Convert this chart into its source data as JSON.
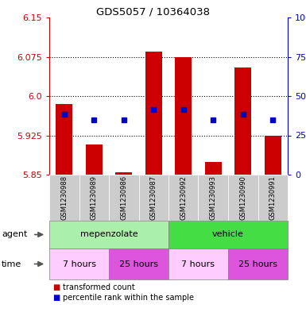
{
  "title": "GDS5057 / 10364038",
  "samples": [
    "GSM1230988",
    "GSM1230989",
    "GSM1230986",
    "GSM1230987",
    "GSM1230992",
    "GSM1230993",
    "GSM1230990",
    "GSM1230991"
  ],
  "bar_tops": [
    5.985,
    5.908,
    5.855,
    6.085,
    6.075,
    5.875,
    6.055,
    5.925
  ],
  "bar_bottoms": [
    5.85,
    5.85,
    5.85,
    5.85,
    5.85,
    5.85,
    5.85,
    5.85
  ],
  "percentile_values": [
    5.965,
    5.955,
    5.955,
    5.975,
    5.975,
    5.955,
    5.965,
    5.955
  ],
  "ylim": [
    5.85,
    6.15
  ],
  "yticks_left": [
    5.85,
    5.925,
    6.0,
    6.075,
    6.15
  ],
  "yticks_right_vals": [
    0,
    25,
    50,
    75,
    100
  ],
  "bar_color": "#cc0000",
  "percentile_color": "#0000cc",
  "agent_groups": [
    {
      "label": "mepenzolate",
      "start": 0,
      "end": 4,
      "color": "#aaf0aa"
    },
    {
      "label": "vehicle",
      "start": 4,
      "end": 8,
      "color": "#44dd44"
    }
  ],
  "time_groups": [
    {
      "label": "7 hours",
      "start": 0,
      "end": 2,
      "color": "#ffccff"
    },
    {
      "label": "25 hours",
      "start": 2,
      "end": 4,
      "color": "#dd55dd"
    },
    {
      "label": "7 hours",
      "start": 4,
      "end": 6,
      "color": "#ffccff"
    },
    {
      "label": "25 hours",
      "start": 6,
      "end": 8,
      "color": "#dd55dd"
    }
  ],
  "legend_labels": [
    "transformed count",
    "percentile rank within the sample"
  ],
  "legend_colors": [
    "#cc0000",
    "#0000cc"
  ],
  "left_tick_color": "#cc0000",
  "right_tick_color": "#0000cc",
  "sample_bg_color": "#cccccc",
  "bar_width": 0.55
}
